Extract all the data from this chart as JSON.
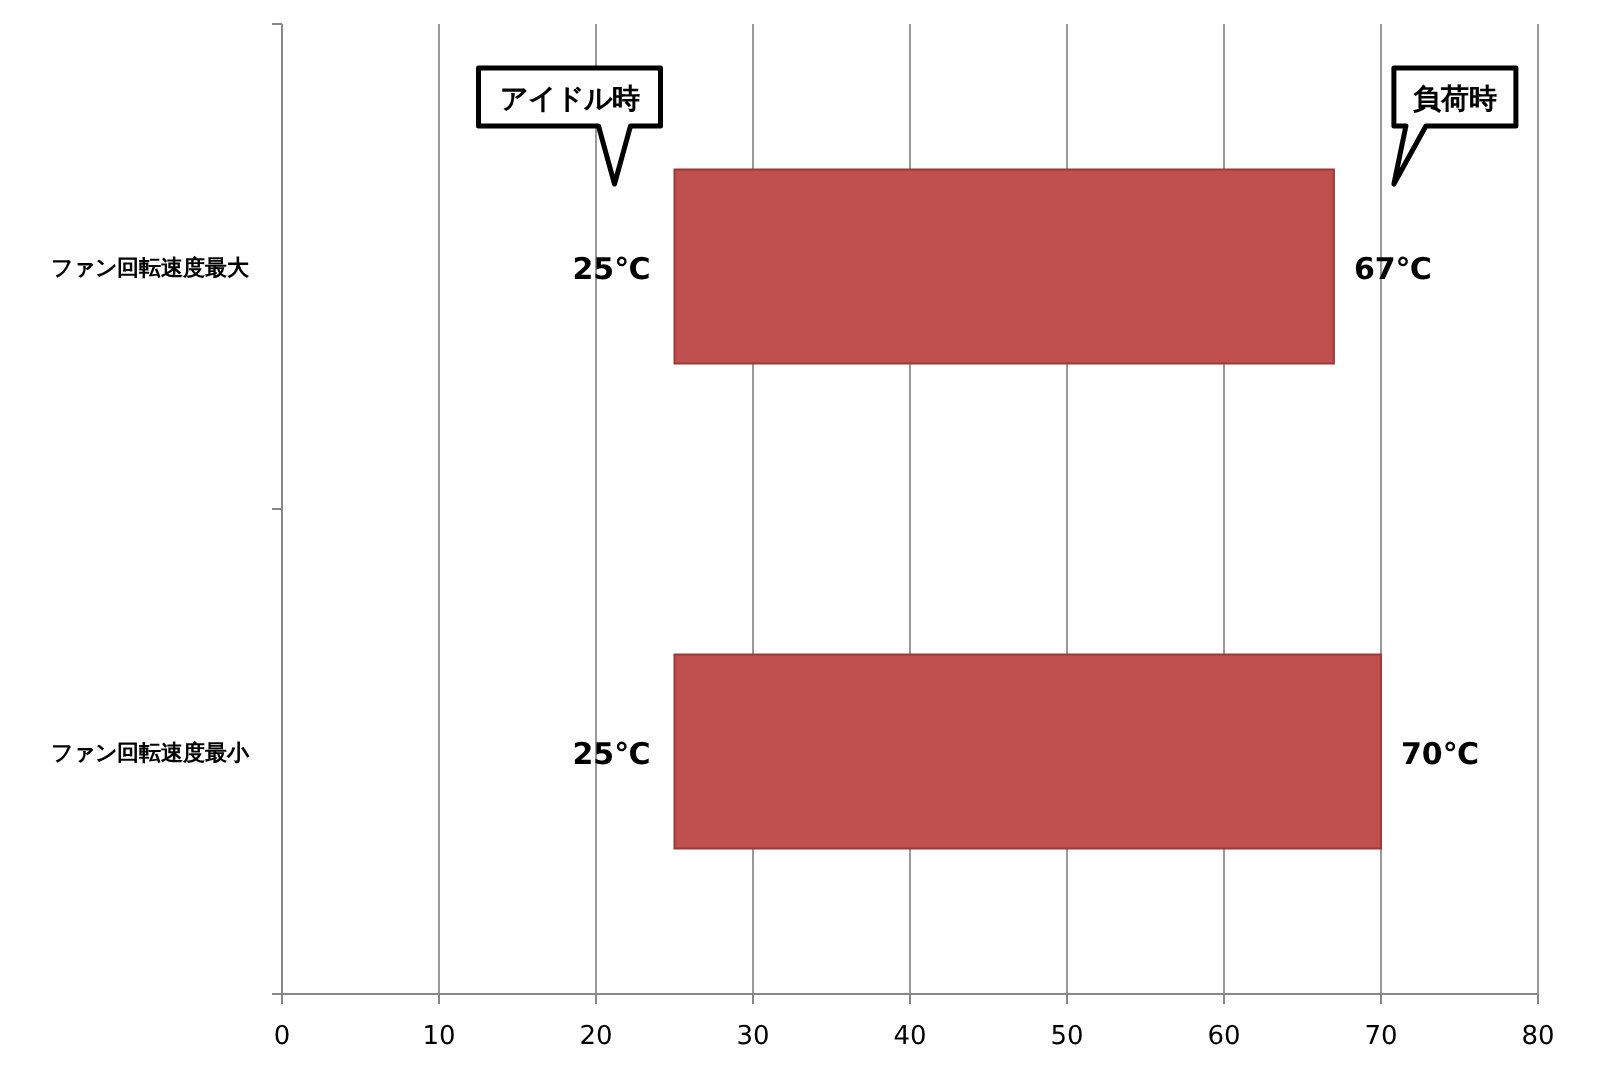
{
  "chart_data": {
    "type": "bar",
    "orientation": "horizontal",
    "categories": [
      "ファン回転速度最大",
      "ファン回転速度最小"
    ],
    "values": [
      42,
      45
    ],
    "base": [
      25,
      25
    ],
    "color": "#c0504d",
    "xlim": [
      0,
      80
    ],
    "xticks": [
      0,
      10,
      20,
      30,
      40,
      50,
      60,
      70,
      80
    ],
    "grid": "x",
    "annotations": [
      {
        "text": "25℃",
        "x": 25,
        "y": "ファン回転速度最大"
      },
      {
        "text": "67℃",
        "x": 67,
        "y": "ファン回転速度最大"
      },
      {
        "text": "25℃",
        "x": 25,
        "y": "ファン回転速度最小"
      },
      {
        "text": "70℃",
        "x": 70,
        "y": "ファン回転速度最小"
      },
      "アイドル時",
      "負荷時"
    ]
  }
}
